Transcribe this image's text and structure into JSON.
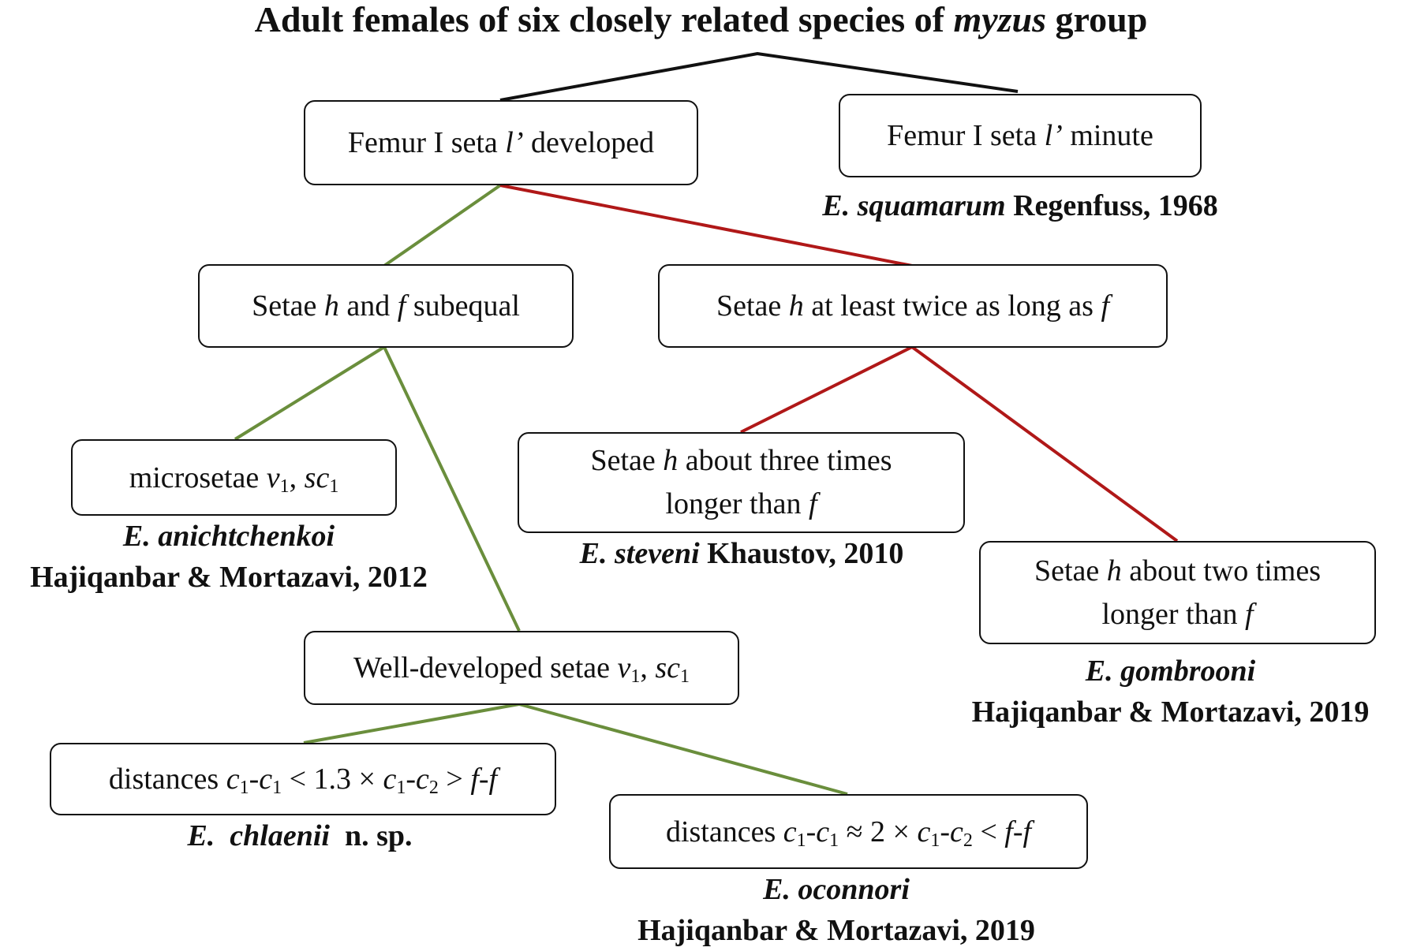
{
  "title": {
    "prefix": "Adult females of six closely related species of ",
    "genus": "myzus",
    "suffix": " group"
  },
  "nodes": {
    "femur_developed": {
      "pre": "Femur I seta ",
      "var": "l’",
      "post": " developed"
    },
    "femur_minute": {
      "pre": "Femur I seta ",
      "var": "l’",
      "post": " minute"
    },
    "setae_subequal": {
      "pre": "Setae ",
      "v1": "h",
      "mid": " and ",
      "v2": "f",
      "post": " subequal"
    },
    "setae_twice": {
      "pre": "Setae ",
      "v1": "h",
      "mid": " at least twice as long as ",
      "v2": "f"
    },
    "microsetae": {
      "pre": "microsetae ",
      "v": "v",
      "s1": "1",
      "comma": ", ",
      "sc": "sc",
      "s2": "1"
    },
    "three_times": {
      "pre": "Setae ",
      "v1": "h",
      "mid": " about three times",
      "line2": "longer than ",
      "v2": "f"
    },
    "two_times": {
      "pre": "Setae ",
      "v1": "h",
      "mid": " about two times",
      "line2": "longer than ",
      "v2": "f"
    },
    "well_developed": {
      "pre": "Well-developed setae ",
      "v": "v",
      "s1": "1",
      "comma": ", ",
      "sc": "sc",
      "s2": "1"
    },
    "distances_chlaenii": {
      "pre": "distances ",
      "c1a": "c",
      "s1": "1",
      "dash1": "-",
      "c1b": "c",
      "s2": "1",
      "op1": " < 1.3 × ",
      "c1c": "c",
      "s3": "1",
      "dash2": "-",
      "c2": "c",
      "s4": "2",
      "op2": " > ",
      "ff": "f-f"
    },
    "distances_oconnori": {
      "pre": "distances ",
      "c1a": "c",
      "s1": "1",
      "dash1": "-",
      "c1b": "c",
      "s2": "1",
      "op1": " ≈ 2 × ",
      "c1c": "c",
      "s3": "1",
      "dash2": "-",
      "c2": "c",
      "s4": "2",
      "op2": " < ",
      "ff": "f-f"
    }
  },
  "species": {
    "squamarum": {
      "name": "E. squamarum",
      "author": " Regenfuss, 1968"
    },
    "anichtchenkoi": {
      "name": "E. anichtchenkoi",
      "author": "Hajiqanbar & Mortazavi, 2012"
    },
    "steveni": {
      "name": "E. steveni",
      "author": " Khaustov, 2010"
    },
    "gombrooni": {
      "name": "E. gombrooni",
      "author": "Hajiqanbar & Mortazavi, 2019"
    },
    "chlaenii": {
      "name": "E.  chlaenii",
      "author": "  n. sp."
    },
    "oconnori": {
      "name": "E. oconnori",
      "author": "Hajiqanbar & Mortazavi, 2019"
    }
  },
  "colors": {
    "green": "#6a8e3c",
    "red": "#b01818",
    "black": "#111111"
  }
}
